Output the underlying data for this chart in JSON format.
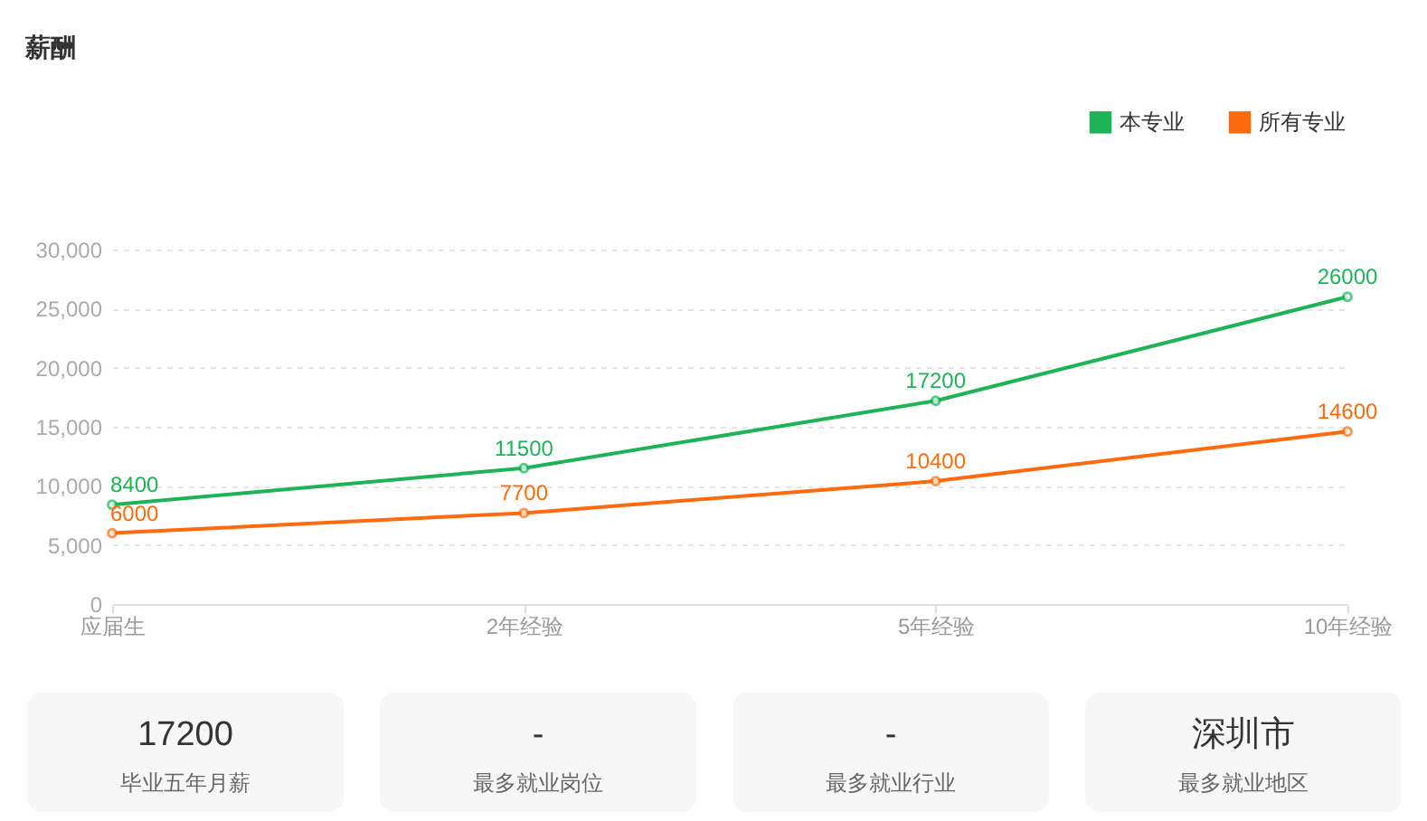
{
  "chart_data": [
    {
      "type": "line",
      "title": "薪酬",
      "categories": [
        "应届生",
        "2年经验",
        "5年经验",
        "10年经验"
      ],
      "series": [
        {
          "name": "本专业",
          "color": "#1db356",
          "values": [
            8400,
            11500,
            17200,
            26000
          ]
        },
        {
          "name": "所有专业",
          "color": "#ff6a0c",
          "values": [
            6000,
            7700,
            10400,
            14600
          ]
        }
      ],
      "ylim": [
        0,
        30000
      ],
      "yticks": [
        {
          "value": 0,
          "label": "0"
        },
        {
          "value": 5000,
          "label": "5,000"
        },
        {
          "value": 10000,
          "label": "10,000"
        },
        {
          "value": 15000,
          "label": "15,000"
        },
        {
          "value": 20000,
          "label": "20,000"
        },
        {
          "value": 25000,
          "label": "25,000"
        },
        {
          "value": 30000,
          "label": "30,000"
        }
      ],
      "grid": "y",
      "legend": "top right",
      "marker": "circle",
      "line_style": "solid",
      "data_labels": true
    },
    {
      "type": "other",
      "annotations": [
        "17200",
        "毕业五年月薪",
        "-",
        "最多就业岗位",
        "-",
        "最多就业行业",
        "深圳市",
        "最多就业地区"
      ]
    }
  ]
}
